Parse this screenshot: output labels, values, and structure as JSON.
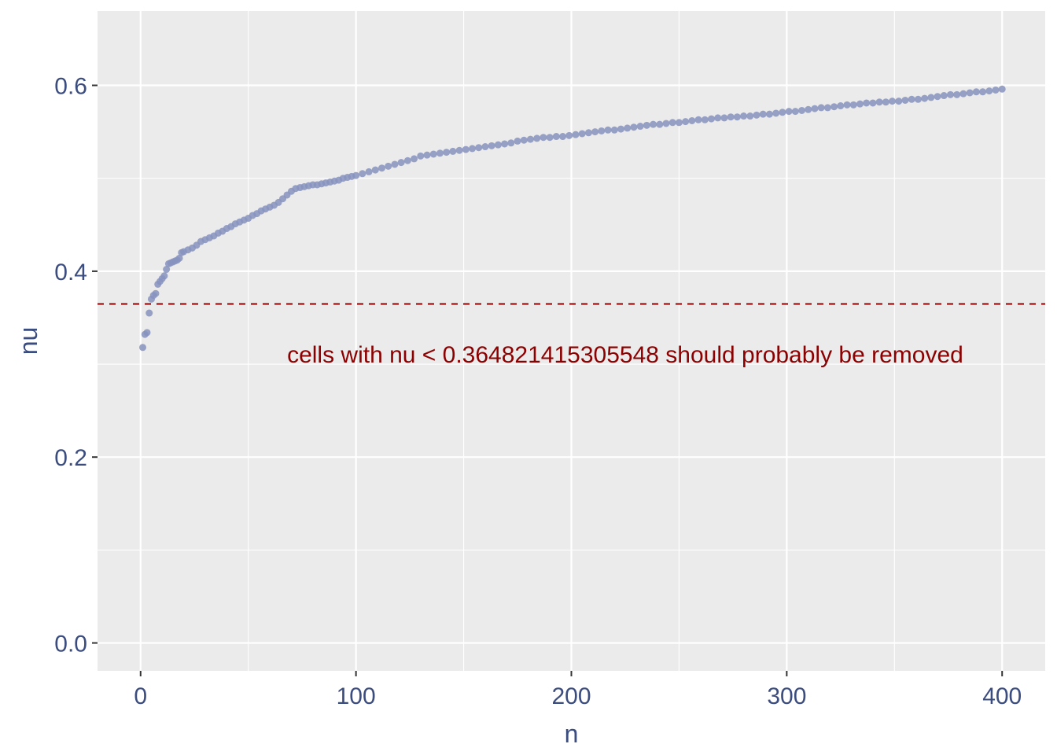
{
  "chart_data": {
    "type": "scatter",
    "xlabel": "n",
    "ylabel": "nu",
    "xlim": [
      -20,
      420
    ],
    "ylim": [
      -0.03,
      0.68
    ],
    "x_ticks": [
      0,
      100,
      200,
      300,
      400
    ],
    "x_tick_labels": [
      "0",
      "100",
      "200",
      "300",
      "400"
    ],
    "y_ticks": [
      0.0,
      0.2,
      0.4,
      0.6
    ],
    "y_tick_labels": [
      "0.0",
      "0.2",
      "0.4",
      "0.6"
    ],
    "grid": true,
    "series": [
      {
        "point_color": "#8793be",
        "points": [
          [
            1,
            0.318
          ],
          [
            2,
            0.332
          ],
          [
            3,
            0.334
          ],
          [
            4,
            0.355
          ],
          [
            5,
            0.37
          ],
          [
            6,
            0.374
          ],
          [
            7,
            0.376
          ],
          [
            8,
            0.386
          ],
          [
            9,
            0.389
          ],
          [
            10,
            0.392
          ],
          [
            11,
            0.395
          ],
          [
            12,
            0.402
          ],
          [
            13,
            0.408
          ],
          [
            14,
            0.409
          ],
          [
            15,
            0.41
          ],
          [
            16,
            0.411
          ],
          [
            17,
            0.412
          ],
          [
            18,
            0.414
          ],
          [
            19,
            0.42
          ],
          [
            20,
            0.421
          ],
          [
            22,
            0.423
          ],
          [
            24,
            0.425
          ],
          [
            26,
            0.428
          ],
          [
            28,
            0.432
          ],
          [
            30,
            0.434
          ],
          [
            32,
            0.436
          ],
          [
            34,
            0.438
          ],
          [
            36,
            0.441
          ],
          [
            38,
            0.443
          ],
          [
            40,
            0.446
          ],
          [
            42,
            0.448
          ],
          [
            44,
            0.451
          ],
          [
            46,
            0.453
          ],
          [
            48,
            0.455
          ],
          [
            50,
            0.457
          ],
          [
            52,
            0.46
          ],
          [
            54,
            0.462
          ],
          [
            56,
            0.465
          ],
          [
            58,
            0.467
          ],
          [
            60,
            0.469
          ],
          [
            62,
            0.471
          ],
          [
            64,
            0.474
          ],
          [
            66,
            0.478
          ],
          [
            68,
            0.482
          ],
          [
            70,
            0.486
          ],
          [
            72,
            0.489
          ],
          [
            74,
            0.49
          ],
          [
            76,
            0.491
          ],
          [
            78,
            0.492
          ],
          [
            80,
            0.493
          ],
          [
            82,
            0.493
          ],
          [
            84,
            0.494
          ],
          [
            86,
            0.495
          ],
          [
            88,
            0.496
          ],
          [
            90,
            0.497
          ],
          [
            92,
            0.498
          ],
          [
            94,
            0.5
          ],
          [
            96,
            0.501
          ],
          [
            98,
            0.502
          ],
          [
            100,
            0.503
          ],
          [
            103,
            0.505
          ],
          [
            106,
            0.507
          ],
          [
            109,
            0.509
          ],
          [
            112,
            0.511
          ],
          [
            115,
            0.513
          ],
          [
            118,
            0.515
          ],
          [
            121,
            0.517
          ],
          [
            124,
            0.519
          ],
          [
            127,
            0.521
          ],
          [
            130,
            0.524
          ],
          [
            133,
            0.525
          ],
          [
            136,
            0.526
          ],
          [
            139,
            0.527
          ],
          [
            142,
            0.528
          ],
          [
            145,
            0.529
          ],
          [
            148,
            0.53
          ],
          [
            151,
            0.531
          ],
          [
            154,
            0.532
          ],
          [
            157,
            0.533
          ],
          [
            160,
            0.534
          ],
          [
            163,
            0.535
          ],
          [
            166,
            0.536
          ],
          [
            169,
            0.537
          ],
          [
            172,
            0.538
          ],
          [
            175,
            0.54
          ],
          [
            178,
            0.541
          ],
          [
            181,
            0.542
          ],
          [
            184,
            0.543
          ],
          [
            187,
            0.544
          ],
          [
            190,
            0.544
          ],
          [
            193,
            0.545
          ],
          [
            196,
            0.545
          ],
          [
            199,
            0.546
          ],
          [
            202,
            0.547
          ],
          [
            205,
            0.548
          ],
          [
            208,
            0.549
          ],
          [
            211,
            0.55
          ],
          [
            214,
            0.551
          ],
          [
            217,
            0.552
          ],
          [
            220,
            0.552
          ],
          [
            223,
            0.553
          ],
          [
            226,
            0.554
          ],
          [
            229,
            0.555
          ],
          [
            232,
            0.556
          ],
          [
            235,
            0.557
          ],
          [
            238,
            0.558
          ],
          [
            241,
            0.558
          ],
          [
            244,
            0.559
          ],
          [
            247,
            0.56
          ],
          [
            250,
            0.56
          ],
          [
            253,
            0.561
          ],
          [
            256,
            0.562
          ],
          [
            259,
            0.563
          ],
          [
            262,
            0.563
          ],
          [
            265,
            0.564
          ],
          [
            268,
            0.565
          ],
          [
            271,
            0.565
          ],
          [
            274,
            0.566
          ],
          [
            277,
            0.566
          ],
          [
            280,
            0.567
          ],
          [
            283,
            0.567
          ],
          [
            286,
            0.568
          ],
          [
            289,
            0.569
          ],
          [
            292,
            0.569
          ],
          [
            295,
            0.57
          ],
          [
            298,
            0.571
          ],
          [
            301,
            0.572
          ],
          [
            304,
            0.572
          ],
          [
            307,
            0.573
          ],
          [
            310,
            0.574
          ],
          [
            313,
            0.575
          ],
          [
            316,
            0.576
          ],
          [
            319,
            0.576
          ],
          [
            322,
            0.577
          ],
          [
            325,
            0.578
          ],
          [
            328,
            0.579
          ],
          [
            331,
            0.579
          ],
          [
            334,
            0.58
          ],
          [
            337,
            0.581
          ],
          [
            340,
            0.581
          ],
          [
            343,
            0.582
          ],
          [
            346,
            0.582
          ],
          [
            349,
            0.583
          ],
          [
            352,
            0.583
          ],
          [
            355,
            0.584
          ],
          [
            358,
            0.585
          ],
          [
            361,
            0.585
          ],
          [
            364,
            0.586
          ],
          [
            367,
            0.587
          ],
          [
            370,
            0.588
          ],
          [
            373,
            0.589
          ],
          [
            376,
            0.59
          ],
          [
            379,
            0.59
          ],
          [
            382,
            0.591
          ],
          [
            385,
            0.592
          ],
          [
            388,
            0.593
          ],
          [
            391,
            0.593
          ],
          [
            394,
            0.594
          ],
          [
            397,
            0.595
          ],
          [
            400,
            0.596
          ]
        ]
      }
    ],
    "threshold": {
      "y": 0.364821415305548,
      "color": "#8b0000",
      "style": "dashed",
      "label": "cells with nu < 0.364821415305548 should probably be removed"
    },
    "annotation_position": {
      "x": 225,
      "y": 0.31
    },
    "colors": {
      "panel_background": "#ebebeb",
      "grid": "#ffffff",
      "text": "#3b4c7f",
      "threshold": "#8b0000"
    }
  }
}
